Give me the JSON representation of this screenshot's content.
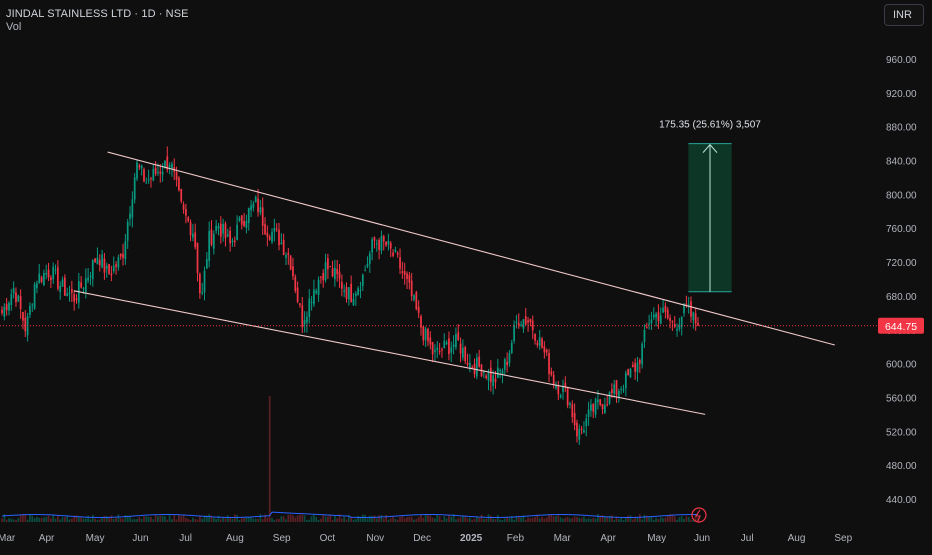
{
  "header": {
    "title": "JINDAL STAINLESS LTD · 1D · NSE",
    "volume_label": "Vol"
  },
  "toolbar": {
    "currency_label": "INR"
  },
  "chart_data": {
    "type": "candlestick",
    "symbol": "JINDAL STAINLESS LTD",
    "interval": "1D",
    "exchange": "NSE",
    "ylim": [
      430,
      1000
    ],
    "y_ticks": [
      "960.00",
      "920.00",
      "880.00",
      "840.00",
      "800.00",
      "760.00",
      "720.00",
      "680.00",
      "640.00",
      "600.00",
      "560.00",
      "520.00",
      "480.00",
      "440.00"
    ],
    "x_ticks": [
      "Mar",
      "Apr",
      "May",
      "Jun",
      "Jul",
      "Aug",
      "Sep",
      "Oct",
      "Nov",
      "Dec",
      "2025",
      "Feb",
      "Mar",
      "Apr",
      "May",
      "Jun",
      "Jul",
      "Aug",
      "Sep"
    ],
    "last_price": "644.75",
    "last_price_value": 644.75,
    "up_color": "#089981",
    "down_color": "#f23645",
    "price_series": [
      {
        "t": 0,
        "p": 660
      },
      {
        "t": 0.5,
        "p": 690
      },
      {
        "t": 1,
        "p": 640
      },
      {
        "t": 1.4,
        "p": 700
      },
      {
        "t": 2,
        "p": 710
      },
      {
        "t": 2.5,
        "p": 690
      },
      {
        "t": 3,
        "p": 678
      },
      {
        "t": 3.5,
        "p": 700
      },
      {
        "t": 4,
        "p": 730
      },
      {
        "t": 4.4,
        "p": 705
      },
      {
        "t": 5,
        "p": 725
      },
      {
        "t": 5.6,
        "p": 835
      },
      {
        "t": 6,
        "p": 815
      },
      {
        "t": 6.6,
        "p": 830
      },
      {
        "t": 7,
        "p": 840
      },
      {
        "t": 7.5,
        "p": 780
      },
      {
        "t": 8,
        "p": 755
      },
      {
        "t": 8.3,
        "p": 670
      },
      {
        "t": 8.6,
        "p": 745
      },
      {
        "t": 9,
        "p": 765
      },
      {
        "t": 9.5,
        "p": 740
      },
      {
        "t": 10,
        "p": 770
      },
      {
        "t": 10.6,
        "p": 790
      },
      {
        "t": 11,
        "p": 760
      },
      {
        "t": 11.5,
        "p": 750
      },
      {
        "t": 12,
        "p": 725
      },
      {
        "t": 12.5,
        "p": 650
      },
      {
        "t": 13,
        "p": 690
      },
      {
        "t": 13.5,
        "p": 715
      },
      {
        "t": 14,
        "p": 700
      },
      {
        "t": 14.5,
        "p": 680
      },
      {
        "t": 15,
        "p": 700
      },
      {
        "t": 15.5,
        "p": 745
      },
      {
        "t": 16,
        "p": 740
      },
      {
        "t": 16.5,
        "p": 720
      },
      {
        "t": 17,
        "p": 685
      },
      {
        "t": 17.5,
        "p": 640
      },
      {
        "t": 18,
        "p": 610
      },
      {
        "t": 18.5,
        "p": 620
      },
      {
        "t": 19,
        "p": 625
      },
      {
        "t": 19.5,
        "p": 600
      },
      {
        "t": 20,
        "p": 595
      },
      {
        "t": 20.5,
        "p": 580
      },
      {
        "t": 21,
        "p": 600
      },
      {
        "t": 21.5,
        "p": 655
      },
      {
        "t": 22,
        "p": 650
      },
      {
        "t": 22.5,
        "p": 620
      },
      {
        "t": 23,
        "p": 580
      },
      {
        "t": 23.6,
        "p": 560
      },
      {
        "t": 24,
        "p": 515
      },
      {
        "t": 24.6,
        "p": 545
      },
      {
        "t": 25,
        "p": 555
      },
      {
        "t": 25.5,
        "p": 565
      },
      {
        "t": 26,
        "p": 580
      },
      {
        "t": 26.5,
        "p": 600
      },
      {
        "t": 27,
        "p": 655
      },
      {
        "t": 27.5,
        "p": 660
      },
      {
        "t": 28,
        "p": 645
      },
      {
        "t": 28.5,
        "p": 665
      },
      {
        "t": 29,
        "p": 644.75
      }
    ],
    "trendlines": [
      {
        "name": "upper-channel-line",
        "points": [
          {
            "t": 4.4,
            "p": 850
          },
          {
            "t": 34.7,
            "p": 622
          }
        ]
      },
      {
        "name": "lower-channel-line",
        "points": [
          {
            "t": 3.0,
            "p": 686
          },
          {
            "t": 29.3,
            "p": 540
          }
        ]
      }
    ],
    "measure": {
      "label": "175.35 (25.61%) 3,507",
      "from_price": 685,
      "to_price": 860,
      "start_t": 28.6,
      "end_t": 30.4,
      "fill": "#0e3d2a",
      "line_color": "#26a69a"
    },
    "volume": {
      "spike_value": "high",
      "baseline": "low"
    }
  }
}
